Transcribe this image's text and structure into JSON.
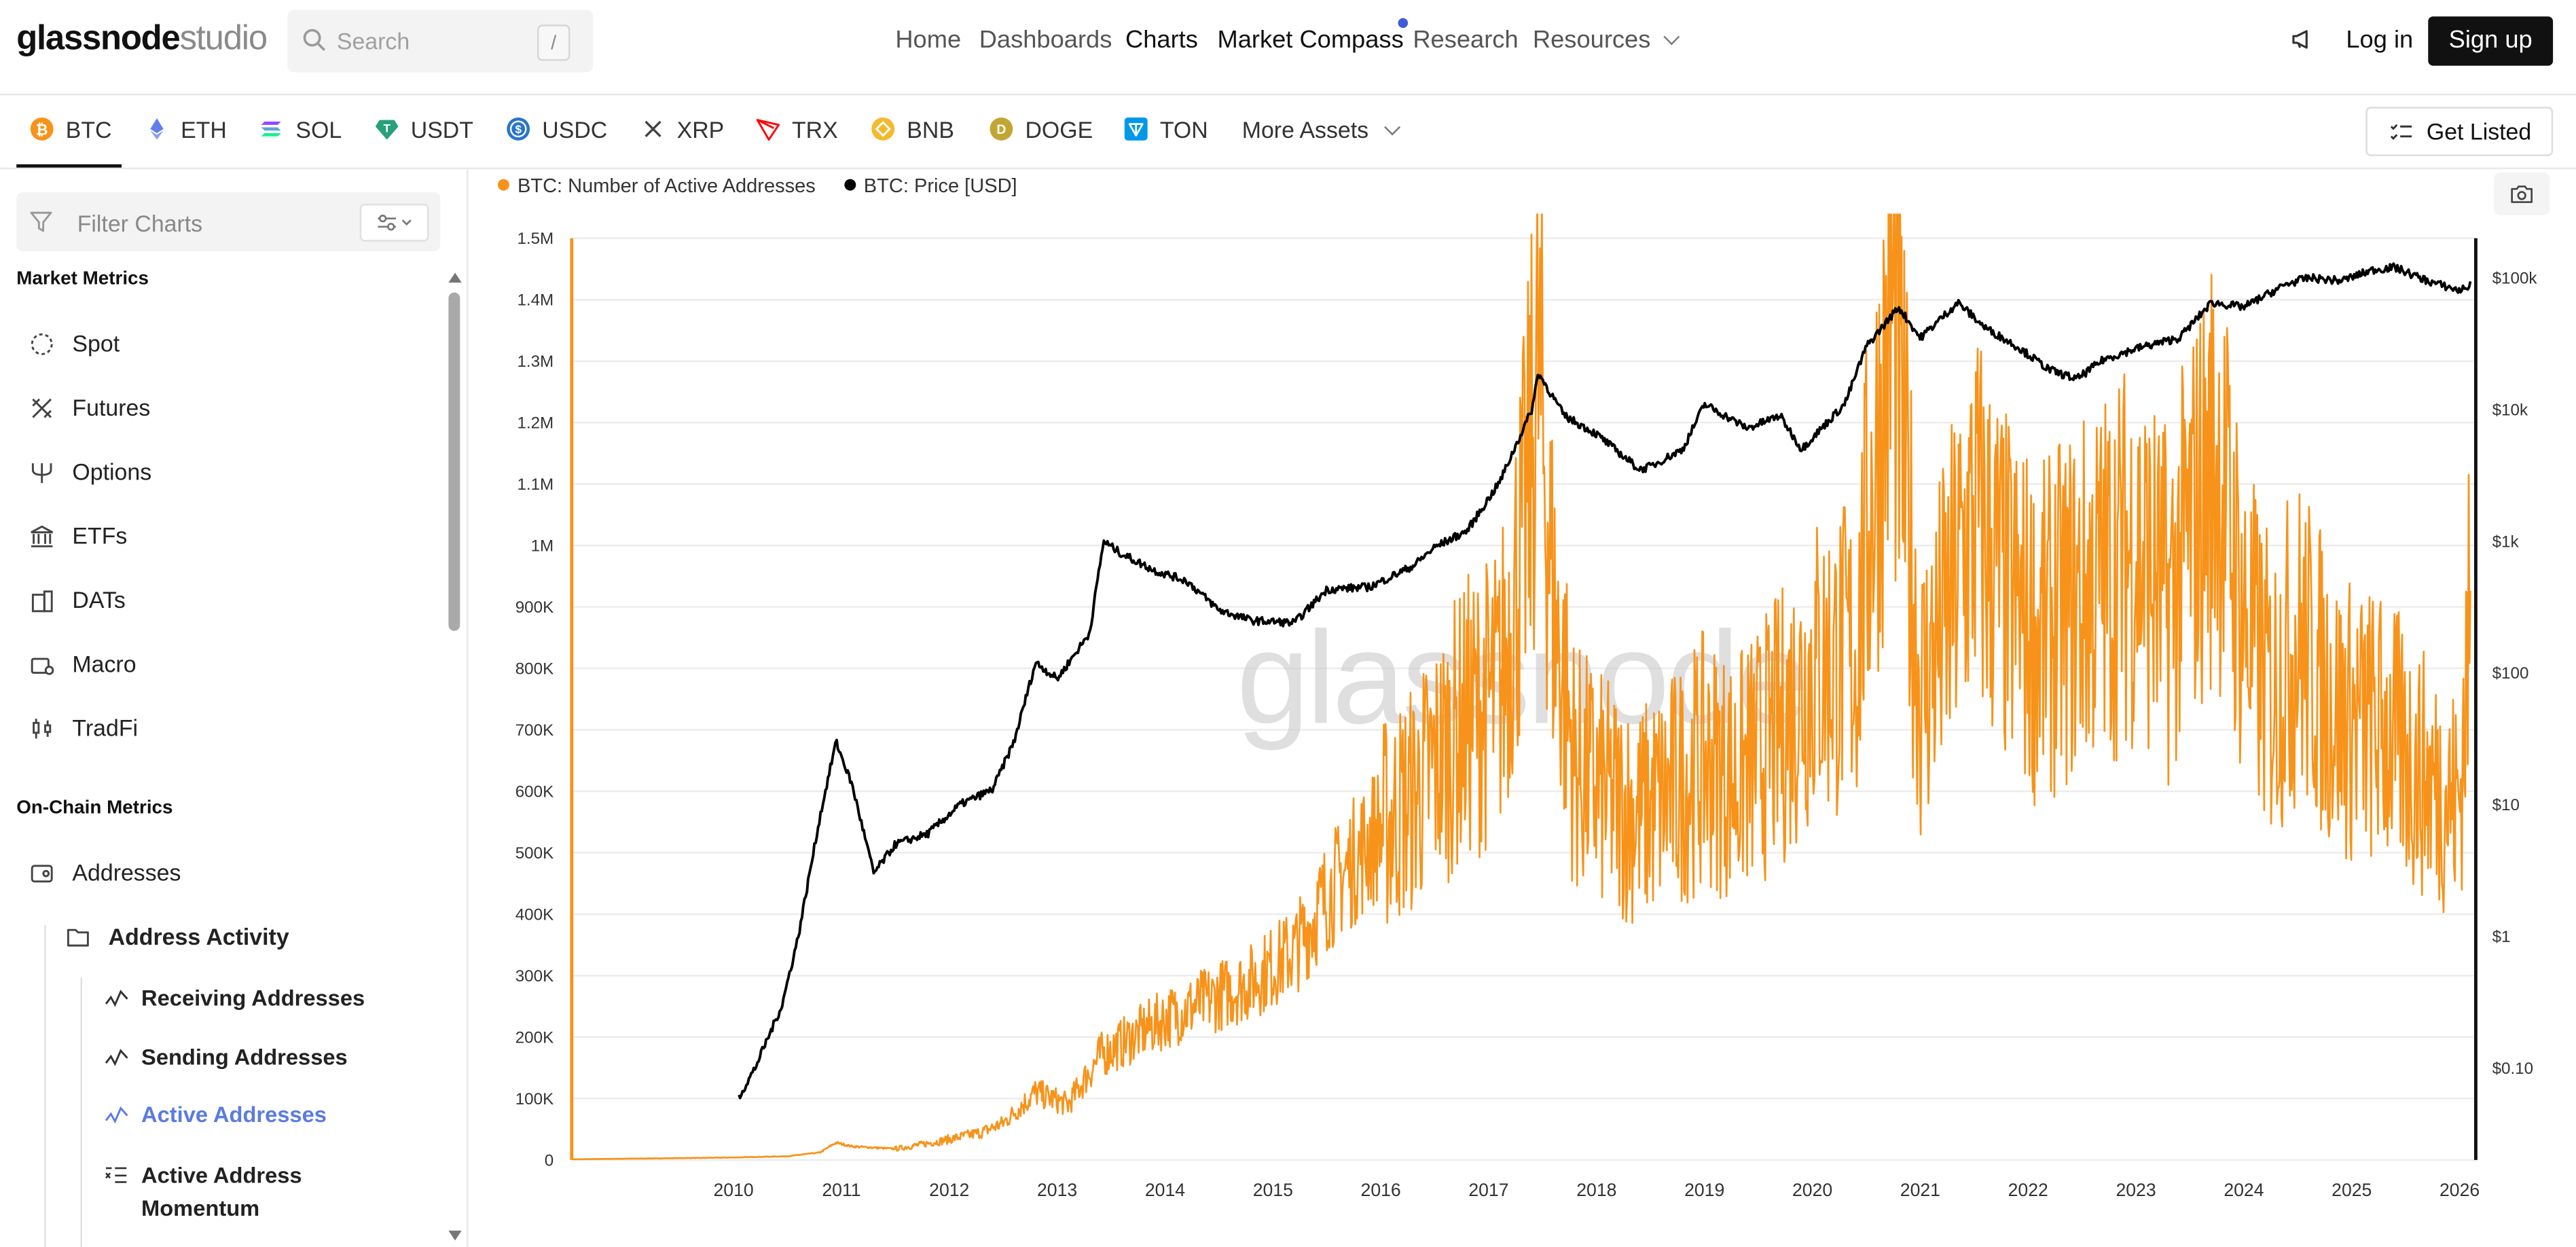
{
  "header": {
    "logo_bold": "glassnode",
    "logo_light": "studio",
    "search_placeholder": "Search",
    "search_shortcut": "/",
    "nav": [
      {
        "label": "Home"
      },
      {
        "label": "Dashboards"
      },
      {
        "label": "Charts"
      },
      {
        "label": "Market Compass"
      },
      {
        "label": "Research"
      },
      {
        "label": "Resources"
      }
    ],
    "login_label": "Log in",
    "signup_label": "Sign up"
  },
  "assets": {
    "items": [
      {
        "label": "BTC",
        "color": "#f7931a"
      },
      {
        "label": "ETH",
        "color": "#627eea"
      },
      {
        "label": "SOL",
        "color": "#14f195"
      },
      {
        "label": "USDT",
        "color": "#26a17b"
      },
      {
        "label": "USDC",
        "color": "#2775ca"
      },
      {
        "label": "XRP",
        "color": "#23292f"
      },
      {
        "label": "TRX",
        "color": "#ff060a"
      },
      {
        "label": "BNB",
        "color": "#f3ba2f"
      },
      {
        "label": "DOGE",
        "color": "#c2a633"
      },
      {
        "label": "TON",
        "color": "#0098ea"
      }
    ],
    "more_label": "More Assets",
    "get_listed_label": "Get Listed"
  },
  "sidebar": {
    "filter_placeholder": "Filter Charts",
    "market_section": "Market Metrics",
    "market_items": [
      {
        "label": "Spot"
      },
      {
        "label": "Futures"
      },
      {
        "label": "Options"
      },
      {
        "label": "ETFs"
      },
      {
        "label": "DATs"
      },
      {
        "label": "Macro"
      },
      {
        "label": "TradFi"
      }
    ],
    "onchain_section": "On-Chain Metrics",
    "addresses_label": "Addresses",
    "address_activity_label": "Address Activity",
    "subitems": [
      {
        "label": "Receiving Addresses"
      },
      {
        "label": "Sending Addresses"
      },
      {
        "label": "Active Addresses"
      },
      {
        "label": "Active Address Momentum"
      }
    ]
  },
  "chart_data": {
    "type": "line",
    "watermark": "glassnode",
    "legend": [
      {
        "name": "BTC: Number of Active Addresses",
        "color": "#f7931a"
      },
      {
        "name": "BTC: Price [USD]",
        "color": "#000000"
      }
    ],
    "x_ticks": [
      "2010",
      "2011",
      "2012",
      "2013",
      "2014",
      "2015",
      "2016",
      "2017",
      "2018",
      "2019",
      "2020",
      "2021",
      "2022",
      "2023",
      "2024",
      "2025",
      "2026"
    ],
    "xlim": [
      2009.0,
      2026.65
    ],
    "y_left_ticks": [
      "0",
      "100K",
      "200K",
      "300K",
      "400K",
      "500K",
      "600K",
      "700K",
      "800K",
      "900K",
      "1M",
      "1.1M",
      "1.2M",
      "1.3M",
      "1.4M",
      "1.5M"
    ],
    "y_left_range": [
      0,
      1500000
    ],
    "y_right_ticks": [
      "$0.10",
      "$1",
      "$10",
      "$100",
      "$1k",
      "$10k",
      "$100k"
    ],
    "y_right_scale": "log",
    "y_right_range": [
      0.02,
      200000
    ],
    "series": [
      {
        "name": "BTC: Number of Active Addresses",
        "axis": "left",
        "x": [
          2009.0,
          2009.5,
          2010.0,
          2010.5,
          2011.0,
          2011.3,
          2011.45,
          2011.6,
          2012.0,
          2012.4,
          2012.8,
          2013.0,
          2013.3,
          2013.6,
          2013.9,
          2014.2,
          2014.5,
          2014.9,
          2015.3,
          2015.7,
          2016.0,
          2016.4,
          2016.8,
          2017.0,
          2017.3,
          2017.6,
          2017.85,
          2017.96,
          2018.1,
          2018.3,
          2018.6,
          2018.9,
          2019.2,
          2019.5,
          2019.8,
          2020.2,
          2020.5,
          2020.9,
          2021.0,
          2021.25,
          2021.5,
          2021.75,
          2022.0,
          2022.3,
          2022.6,
          2022.9,
          2023.2,
          2023.5,
          2023.8,
          2024.0,
          2024.25,
          2024.5,
          2024.75,
          2025.0,
          2025.4,
          2025.8,
          2026.2,
          2026.5,
          2026.6
        ],
        "y": [
          1000,
          2000,
          3000,
          4000,
          6000,
          12000,
          28000,
          22000,
          18000,
          30000,
          45000,
          60000,
          110000,
          90000,
          170000,
          200000,
          230000,
          260000,
          290000,
          340000,
          430000,
          520000,
          590000,
          640000,
          720000,
          760000,
          1050000,
          1280000,
          900000,
          640000,
          590000,
          560000,
          600000,
          650000,
          620000,
          700000,
          800000,
          820000,
          1000000,
          1380000,
          760000,
          880000,
          1050000,
          920000,
          850000,
          900000,
          950000,
          1000000,
          900000,
          1020000,
          1150000,
          880000,
          760000,
          850000,
          720000,
          700000,
          620000,
          580000,
          900000
        ]
      },
      {
        "name": "BTC: Price [USD]",
        "axis": "right",
        "x": [
          2010.55,
          2010.7,
          2010.95,
          2011.1,
          2011.3,
          2011.45,
          2011.6,
          2011.8,
          2012.0,
          2012.3,
          2012.6,
          2012.9,
          2013.1,
          2013.3,
          2013.5,
          2013.8,
          2013.93,
          2014.1,
          2014.4,
          2014.7,
          2015.0,
          2015.3,
          2015.7,
          2016.0,
          2016.4,
          2016.8,
          2017.0,
          2017.3,
          2017.6,
          2017.9,
          2017.96,
          2018.2,
          2018.5,
          2018.9,
          2019.0,
          2019.3,
          2019.5,
          2019.9,
          2020.2,
          2020.4,
          2020.8,
          2021.0,
          2021.3,
          2021.5,
          2021.85,
          2022.1,
          2022.4,
          2022.7,
          2022.95,
          2023.2,
          2023.5,
          2023.9,
          2024.2,
          2024.5,
          2024.9,
          2025.1,
          2025.4,
          2025.7,
          2025.9,
          2026.2,
          2026.5,
          2026.6
        ],
        "y": [
          0.06,
          0.1,
          0.3,
          1,
          8,
          30,
          14,
          3,
          5,
          6,
          10,
          13,
          30,
          120,
          90,
          200,
          1000,
          800,
          600,
          500,
          300,
          250,
          240,
          430,
          450,
          650,
          900,
          1200,
          2800,
          10000,
          19000,
          9000,
          6500,
          3500,
          3700,
          5000,
          11000,
          7200,
          9000,
          5000,
          11000,
          30000,
          60000,
          35000,
          65000,
          42000,
          30000,
          20000,
          17000,
          24000,
          29000,
          35000,
          65000,
          60000,
          90000,
          100000,
          95000,
          115000,
          120000,
          95000,
          80000,
          88000
        ]
      }
    ],
    "grid": "horizontal"
  }
}
